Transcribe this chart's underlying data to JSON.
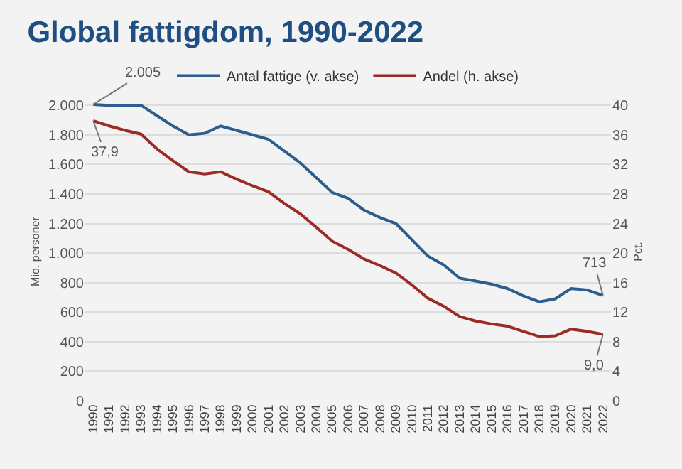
{
  "chart_data": {
    "type": "line",
    "title": "Global fattigdom, 1990-2022",
    "categories": [
      "1990",
      "1991",
      "1992",
      "1993",
      "1994",
      "1995",
      "1996",
      "1997",
      "1998",
      "1999",
      "2000",
      "2001",
      "2002",
      "2003",
      "2004",
      "2005",
      "2006",
      "2007",
      "2008",
      "2009",
      "2010",
      "2011",
      "2012",
      "2013",
      "2014",
      "2015",
      "2016",
      "2017",
      "2018",
      "2019",
      "2020",
      "2021",
      "2022"
    ],
    "series": [
      {
        "name": "Antal fattige (v. akse)",
        "color": "#2b5d8e",
        "values": [
          2005,
          2000,
          2000,
          2000,
          1930,
          1860,
          1800,
          1810,
          1860,
          1830,
          1800,
          1770,
          1690,
          1610,
          1510,
          1410,
          1370,
          1290,
          1240,
          1200,
          1090,
          980,
          920,
          830,
          810,
          790,
          760,
          710,
          670,
          690,
          760,
          750,
          713
        ]
      },
      {
        "name": "Andel (h. akse)",
        "color": "#9c2b26",
        "axis": "y2",
        "values": [
          37.9,
          37.2,
          36.6,
          36.1,
          34.1,
          32.5,
          31.0,
          30.7,
          31.0,
          30.0,
          29.1,
          28.3,
          26.7,
          25.3,
          23.5,
          21.6,
          20.5,
          19.2,
          18.3,
          17.3,
          15.7,
          13.9,
          12.8,
          11.4,
          10.8,
          10.4,
          10.1,
          9.4,
          8.7,
          8.8,
          9.7,
          9.4,
          9.0
        ]
      }
    ],
    "ylabel": "Mio. personer",
    "y2label": "Pct.",
    "ylim": [
      0,
      2020
    ],
    "yticks": [
      0,
      200,
      400,
      600,
      800,
      {
        "value": 1000,
        "label": "1.000"
      },
      {
        "value": 1200,
        "label": "1.200"
      },
      {
        "value": 1400,
        "label": "1.400"
      },
      {
        "value": 1600,
        "label": "1.600"
      },
      {
        "value": 1800,
        "label": "1.800"
      },
      {
        "value": 2000,
        "label": "2.000"
      }
    ],
    "y2lim": [
      0,
      40.4
    ],
    "y2ticks": [
      0,
      4,
      8,
      12,
      16,
      20,
      24,
      28,
      32,
      36,
      40
    ],
    "annotations": [
      {
        "text": "2.005",
        "x": "1990",
        "y": 2005
      },
      "37,9",
      {
        "text": "713",
        "x": "2022",
        "y": 713
      },
      "9,0"
    ],
    "grid": "y",
    "legend": "top",
    "marker": "none",
    "line_style": "solid"
  }
}
